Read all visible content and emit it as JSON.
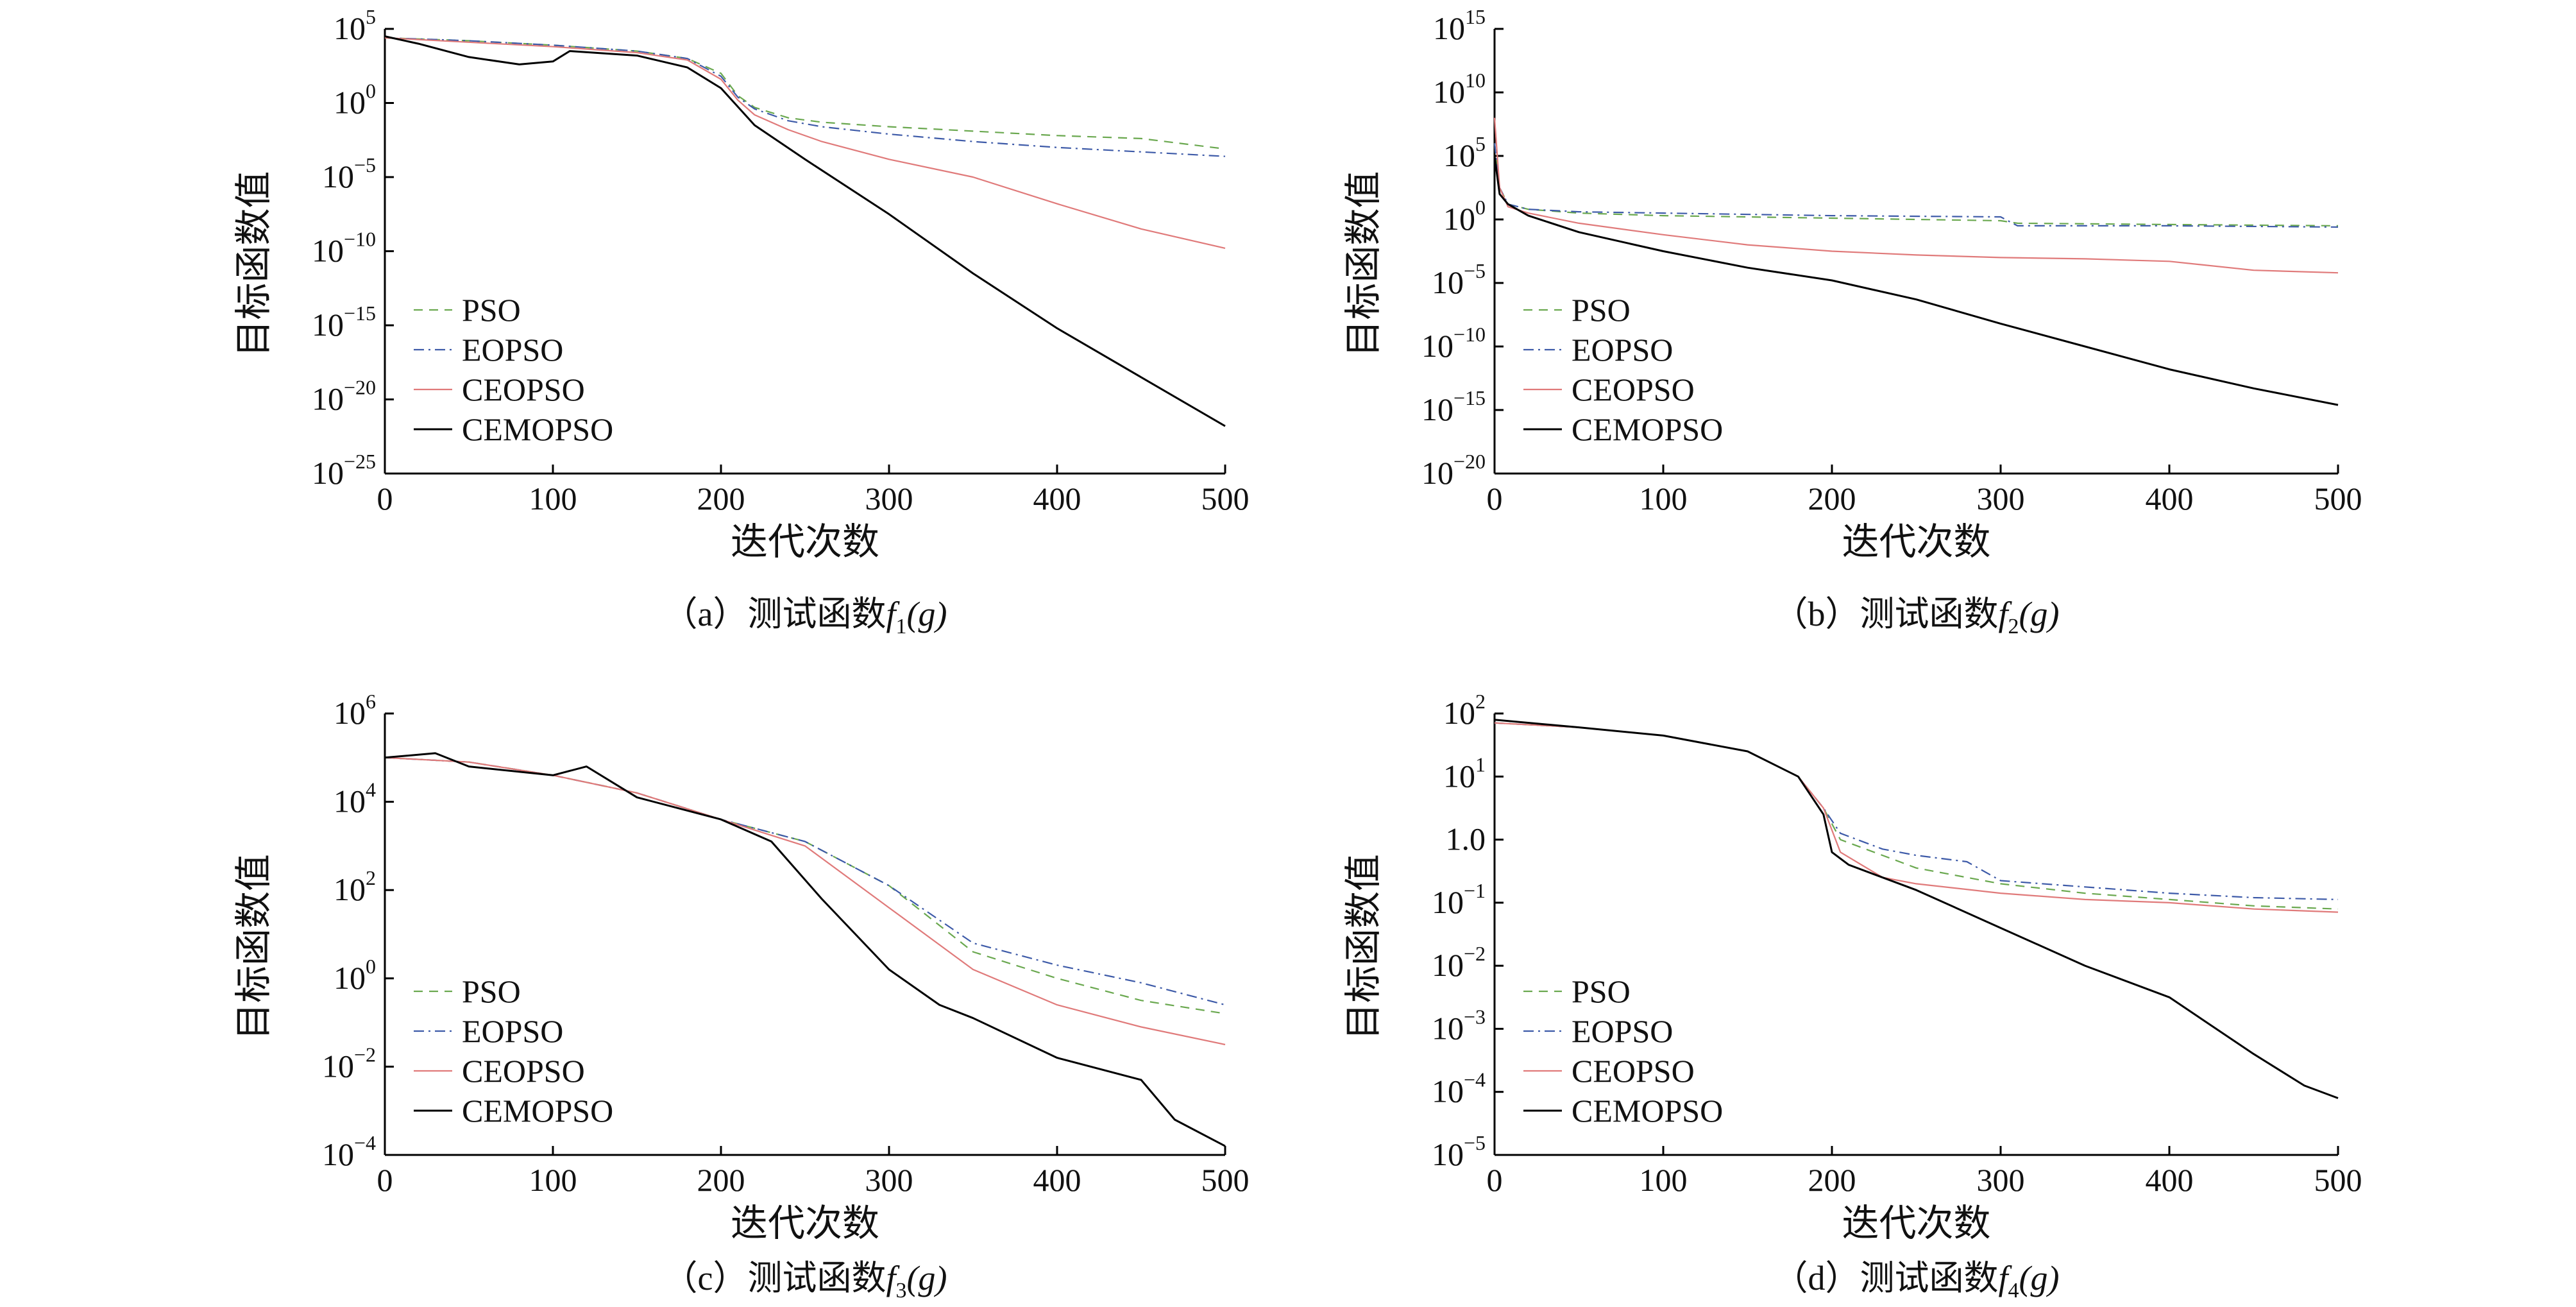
{
  "chart_data": [
    {
      "id": "a",
      "type": "line",
      "caption_prefix": "（a）测试函数",
      "caption_fn": "f",
      "caption_sub": "1",
      "caption_arg": "(g)",
      "xlabel": "迭代次数",
      "ylabel": "目标函数值",
      "xlim": [
        0,
        500
      ],
      "ylog": true,
      "ylim_exp": [
        -25,
        5
      ],
      "xticks": [
        0,
        100,
        200,
        300,
        400,
        500
      ],
      "yticks_exp": [
        5,
        0,
        -5,
        -10,
        -15,
        -20,
        -25
      ],
      "ytick_base": "10",
      "ytick_exps": [
        "5",
        "0",
        "−5",
        "−10",
        "−15",
        "−20",
        "−25"
      ],
      "legend_position": "lower-left",
      "series": [
        {
          "name": "PSO",
          "color": "#6aa84f",
          "dash": "dashed",
          "x": [
            0,
            50,
            100,
            150,
            180,
            200,
            210,
            220,
            240,
            260,
            300,
            350,
            400,
            450,
            500
          ],
          "y_exp": [
            4.4,
            4.2,
            3.9,
            3.5,
            3.0,
            2.0,
            0.5,
            -0.3,
            -1.0,
            -1.3,
            -1.6,
            -1.9,
            -2.2,
            -2.4,
            -3.1
          ]
        },
        {
          "name": "EOPSO",
          "color": "#3d5aa8",
          "dash": "dashdot",
          "x": [
            0,
            50,
            100,
            150,
            180,
            200,
            210,
            220,
            240,
            260,
            300,
            350,
            400,
            450,
            500
          ],
          "y_exp": [
            4.4,
            4.2,
            3.9,
            3.5,
            3.0,
            1.8,
            0.4,
            -0.4,
            -1.2,
            -1.6,
            -2.1,
            -2.6,
            -3.0,
            -3.3,
            -3.6
          ]
        },
        {
          "name": "CEOPSO",
          "color": "#e07a7a",
          "dash": "solid",
          "x": [
            0,
            50,
            100,
            150,
            180,
            200,
            210,
            220,
            240,
            260,
            300,
            350,
            400,
            450,
            500
          ],
          "y_exp": [
            4.4,
            4.1,
            3.8,
            3.4,
            2.9,
            1.6,
            0.2,
            -0.8,
            -1.8,
            -2.6,
            -3.8,
            -5.0,
            -6.8,
            -8.5,
            -9.8
          ]
        },
        {
          "name": "CEMOPSO",
          "color": "#000000",
          "dash": "solid",
          "width": 3,
          "x": [
            0,
            20,
            50,
            80,
            100,
            110,
            150,
            180,
            200,
            220,
            250,
            300,
            350,
            400,
            450,
            500
          ],
          "y_exp": [
            4.5,
            4.0,
            3.1,
            2.6,
            2.8,
            3.5,
            3.2,
            2.4,
            1.0,
            -1.5,
            -3.8,
            -7.5,
            -11.5,
            -15.2,
            -18.5,
            -21.8
          ]
        }
      ]
    },
    {
      "id": "b",
      "type": "line",
      "caption_prefix": "（b）测试函数",
      "caption_fn": "f",
      "caption_sub": "2",
      "caption_arg": "(g)",
      "xlabel": "迭代次数",
      "ylabel": "目标函数值",
      "xlim": [
        0,
        500
      ],
      "ylog": true,
      "ylim_exp": [
        -20,
        15
      ],
      "xticks": [
        0,
        100,
        200,
        300,
        400,
        500
      ],
      "yticks_exp": [
        15,
        10,
        5,
        0,
        -5,
        -10,
        -15,
        -20
      ],
      "ytick_base": "10",
      "ytick_exps": [
        "15",
        "10",
        "5",
        "0",
        "−5",
        "−10",
        "−15",
        "−20"
      ],
      "legend_position": "lower-left",
      "series": [
        {
          "name": "PSO",
          "color": "#6aa84f",
          "dash": "dashed",
          "x": [
            0,
            3,
            8,
            20,
            50,
            100,
            200,
            300,
            310,
            400,
            500
          ],
          "y_exp": [
            6,
            2.5,
            1.2,
            0.8,
            0.5,
            0.3,
            0.1,
            -0.1,
            -0.3,
            -0.4,
            -0.5
          ]
        },
        {
          "name": "EOPSO",
          "color": "#3d5aa8",
          "dash": "dashdot",
          "x": [
            0,
            3,
            8,
            20,
            50,
            100,
            200,
            300,
            310,
            400,
            500
          ],
          "y_exp": [
            6,
            2.5,
            1.2,
            0.8,
            0.6,
            0.5,
            0.3,
            0.2,
            -0.5,
            -0.5,
            -0.6
          ]
        },
        {
          "name": "CEOPSO",
          "color": "#e07a7a",
          "dash": "solid",
          "x": [
            0,
            3,
            8,
            20,
            50,
            100,
            150,
            200,
            250,
            300,
            350,
            400,
            450,
            500
          ],
          "y_exp": [
            8,
            2.5,
            1.0,
            0.5,
            -0.3,
            -1.2,
            -2.0,
            -2.5,
            -2.8,
            -3.0,
            -3.1,
            -3.3,
            -4.0,
            -4.2
          ]
        },
        {
          "name": "CEMOPSO",
          "color": "#000000",
          "dash": "solid",
          "width": 3,
          "x": [
            0,
            3,
            8,
            20,
            50,
            100,
            150,
            200,
            250,
            300,
            350,
            400,
            450,
            500
          ],
          "y_exp": [
            5,
            2.0,
            1.2,
            0.3,
            -1.0,
            -2.5,
            -3.8,
            -4.8,
            -6.3,
            -8.2,
            -10.0,
            -11.8,
            -13.3,
            -14.6
          ]
        }
      ]
    },
    {
      "id": "c",
      "type": "line",
      "caption_prefix": "（c）测试函数",
      "caption_fn": "f",
      "caption_sub": "3",
      "caption_arg": "(g)",
      "xlabel": "迭代次数",
      "ylabel": "目标函数值",
      "xlim": [
        0,
        500
      ],
      "ylog": true,
      "ylim_exp": [
        -4,
        6
      ],
      "xticks": [
        0,
        100,
        200,
        300,
        400,
        500
      ],
      "yticks_exp": [
        6,
        4,
        2,
        0,
        -2,
        -4
      ],
      "ytick_base": "10",
      "ytick_exps": [
        "6",
        "4",
        "2",
        "0",
        "−2",
        "−4"
      ],
      "legend_position": "lower-left",
      "series": [
        {
          "name": "PSO",
          "color": "#6aa84f",
          "dash": "dashed",
          "x": [
            0,
            50,
            100,
            150,
            200,
            250,
            300,
            350,
            400,
            450,
            500
          ],
          "y_exp": [
            5.0,
            4.9,
            4.6,
            4.2,
            3.6,
            3.1,
            2.1,
            0.6,
            0.0,
            -0.5,
            -0.8
          ]
        },
        {
          "name": "EOPSO",
          "color": "#3d5aa8",
          "dash": "dashdot",
          "x": [
            0,
            50,
            100,
            150,
            200,
            250,
            300,
            350,
            400,
            450,
            500
          ],
          "y_exp": [
            5.0,
            4.9,
            4.6,
            4.2,
            3.6,
            3.1,
            2.1,
            0.8,
            0.3,
            -0.1,
            -0.6
          ]
        },
        {
          "name": "CEOPSO",
          "color": "#e07a7a",
          "dash": "solid",
          "x": [
            0,
            50,
            100,
            150,
            200,
            250,
            300,
            350,
            400,
            450,
            500
          ],
          "y_exp": [
            5.0,
            4.9,
            4.6,
            4.2,
            3.6,
            3.0,
            1.6,
            0.2,
            -0.6,
            -1.1,
            -1.5
          ]
        },
        {
          "name": "CEMOPSO",
          "color": "#000000",
          "dash": "solid",
          "width": 3,
          "x": [
            0,
            30,
            50,
            100,
            120,
            150,
            200,
            230,
            260,
            300,
            330,
            350,
            400,
            450,
            470,
            500
          ],
          "y_exp": [
            5.0,
            5.1,
            4.8,
            4.6,
            4.8,
            4.1,
            3.6,
            3.1,
            1.8,
            0.2,
            -0.6,
            -0.9,
            -1.8,
            -2.3,
            -3.2,
            -3.8
          ]
        }
      ]
    },
    {
      "id": "d",
      "type": "line",
      "caption_prefix": "（d）测试函数",
      "caption_fn": "f",
      "caption_sub": "4",
      "caption_arg": "(g)",
      "xlabel": "迭代次数",
      "ylabel": "目标函数值",
      "xlim": [
        0,
        500
      ],
      "ylog": true,
      "ylim_exp": [
        -5,
        2
      ],
      "xticks": [
        0,
        100,
        200,
        300,
        400,
        500
      ],
      "yticks_exp": [
        2,
        1,
        0,
        -1,
        -2,
        -3,
        -4,
        -5
      ],
      "ytick_labels": [
        {
          "base": "10",
          "exp": "2"
        },
        {
          "base": "10",
          "exp": "1"
        },
        {
          "base": "1.0",
          "exp": ""
        },
        {
          "base": "10",
          "exp": "−1"
        },
        {
          "base": "10",
          "exp": "−2"
        },
        {
          "base": "10",
          "exp": "−3"
        },
        {
          "base": "10",
          "exp": "−4"
        },
        {
          "base": "10",
          "exp": "−5"
        }
      ],
      "legend_position": "lower-left",
      "series": [
        {
          "name": "PSO",
          "color": "#6aa84f",
          "dash": "dashed",
          "x": [
            0,
            50,
            100,
            150,
            180,
            195,
            205,
            230,
            250,
            300,
            350,
            400,
            450,
            500
          ],
          "y_exp": [
            1.85,
            1.78,
            1.65,
            1.4,
            1.0,
            0.5,
            0.0,
            -0.25,
            -0.45,
            -0.7,
            -0.85,
            -0.95,
            -1.05,
            -1.1
          ]
        },
        {
          "name": "EOPSO",
          "color": "#3d5aa8",
          "dash": "dashdot",
          "x": [
            0,
            50,
            100,
            150,
            180,
            195,
            205,
            230,
            250,
            280,
            300,
            350,
            400,
            450,
            500
          ],
          "y_exp": [
            1.85,
            1.78,
            1.65,
            1.4,
            1.0,
            0.5,
            0.1,
            -0.15,
            -0.25,
            -0.35,
            -0.65,
            -0.75,
            -0.85,
            -0.92,
            -0.95
          ]
        },
        {
          "name": "CEOPSO",
          "color": "#e07a7a",
          "dash": "solid",
          "x": [
            0,
            50,
            100,
            150,
            180,
            195,
            205,
            230,
            250,
            300,
            350,
            400,
            450,
            500
          ],
          "y_exp": [
            1.85,
            1.78,
            1.65,
            1.4,
            1.0,
            0.5,
            -0.2,
            -0.6,
            -0.7,
            -0.85,
            -0.95,
            -1.0,
            -1.1,
            -1.15
          ]
        },
        {
          "name": "CEMOPSO",
          "color": "#000000",
          "dash": "solid",
          "width": 3,
          "x": [
            0,
            50,
            100,
            150,
            180,
            195,
            200,
            210,
            250,
            300,
            350,
            400,
            450,
            480,
            500
          ],
          "y_exp": [
            1.9,
            1.78,
            1.65,
            1.4,
            1.0,
            0.4,
            -0.2,
            -0.4,
            -0.8,
            -1.4,
            -2.0,
            -2.5,
            -3.4,
            -3.9,
            -4.1
          ]
        }
      ]
    }
  ]
}
